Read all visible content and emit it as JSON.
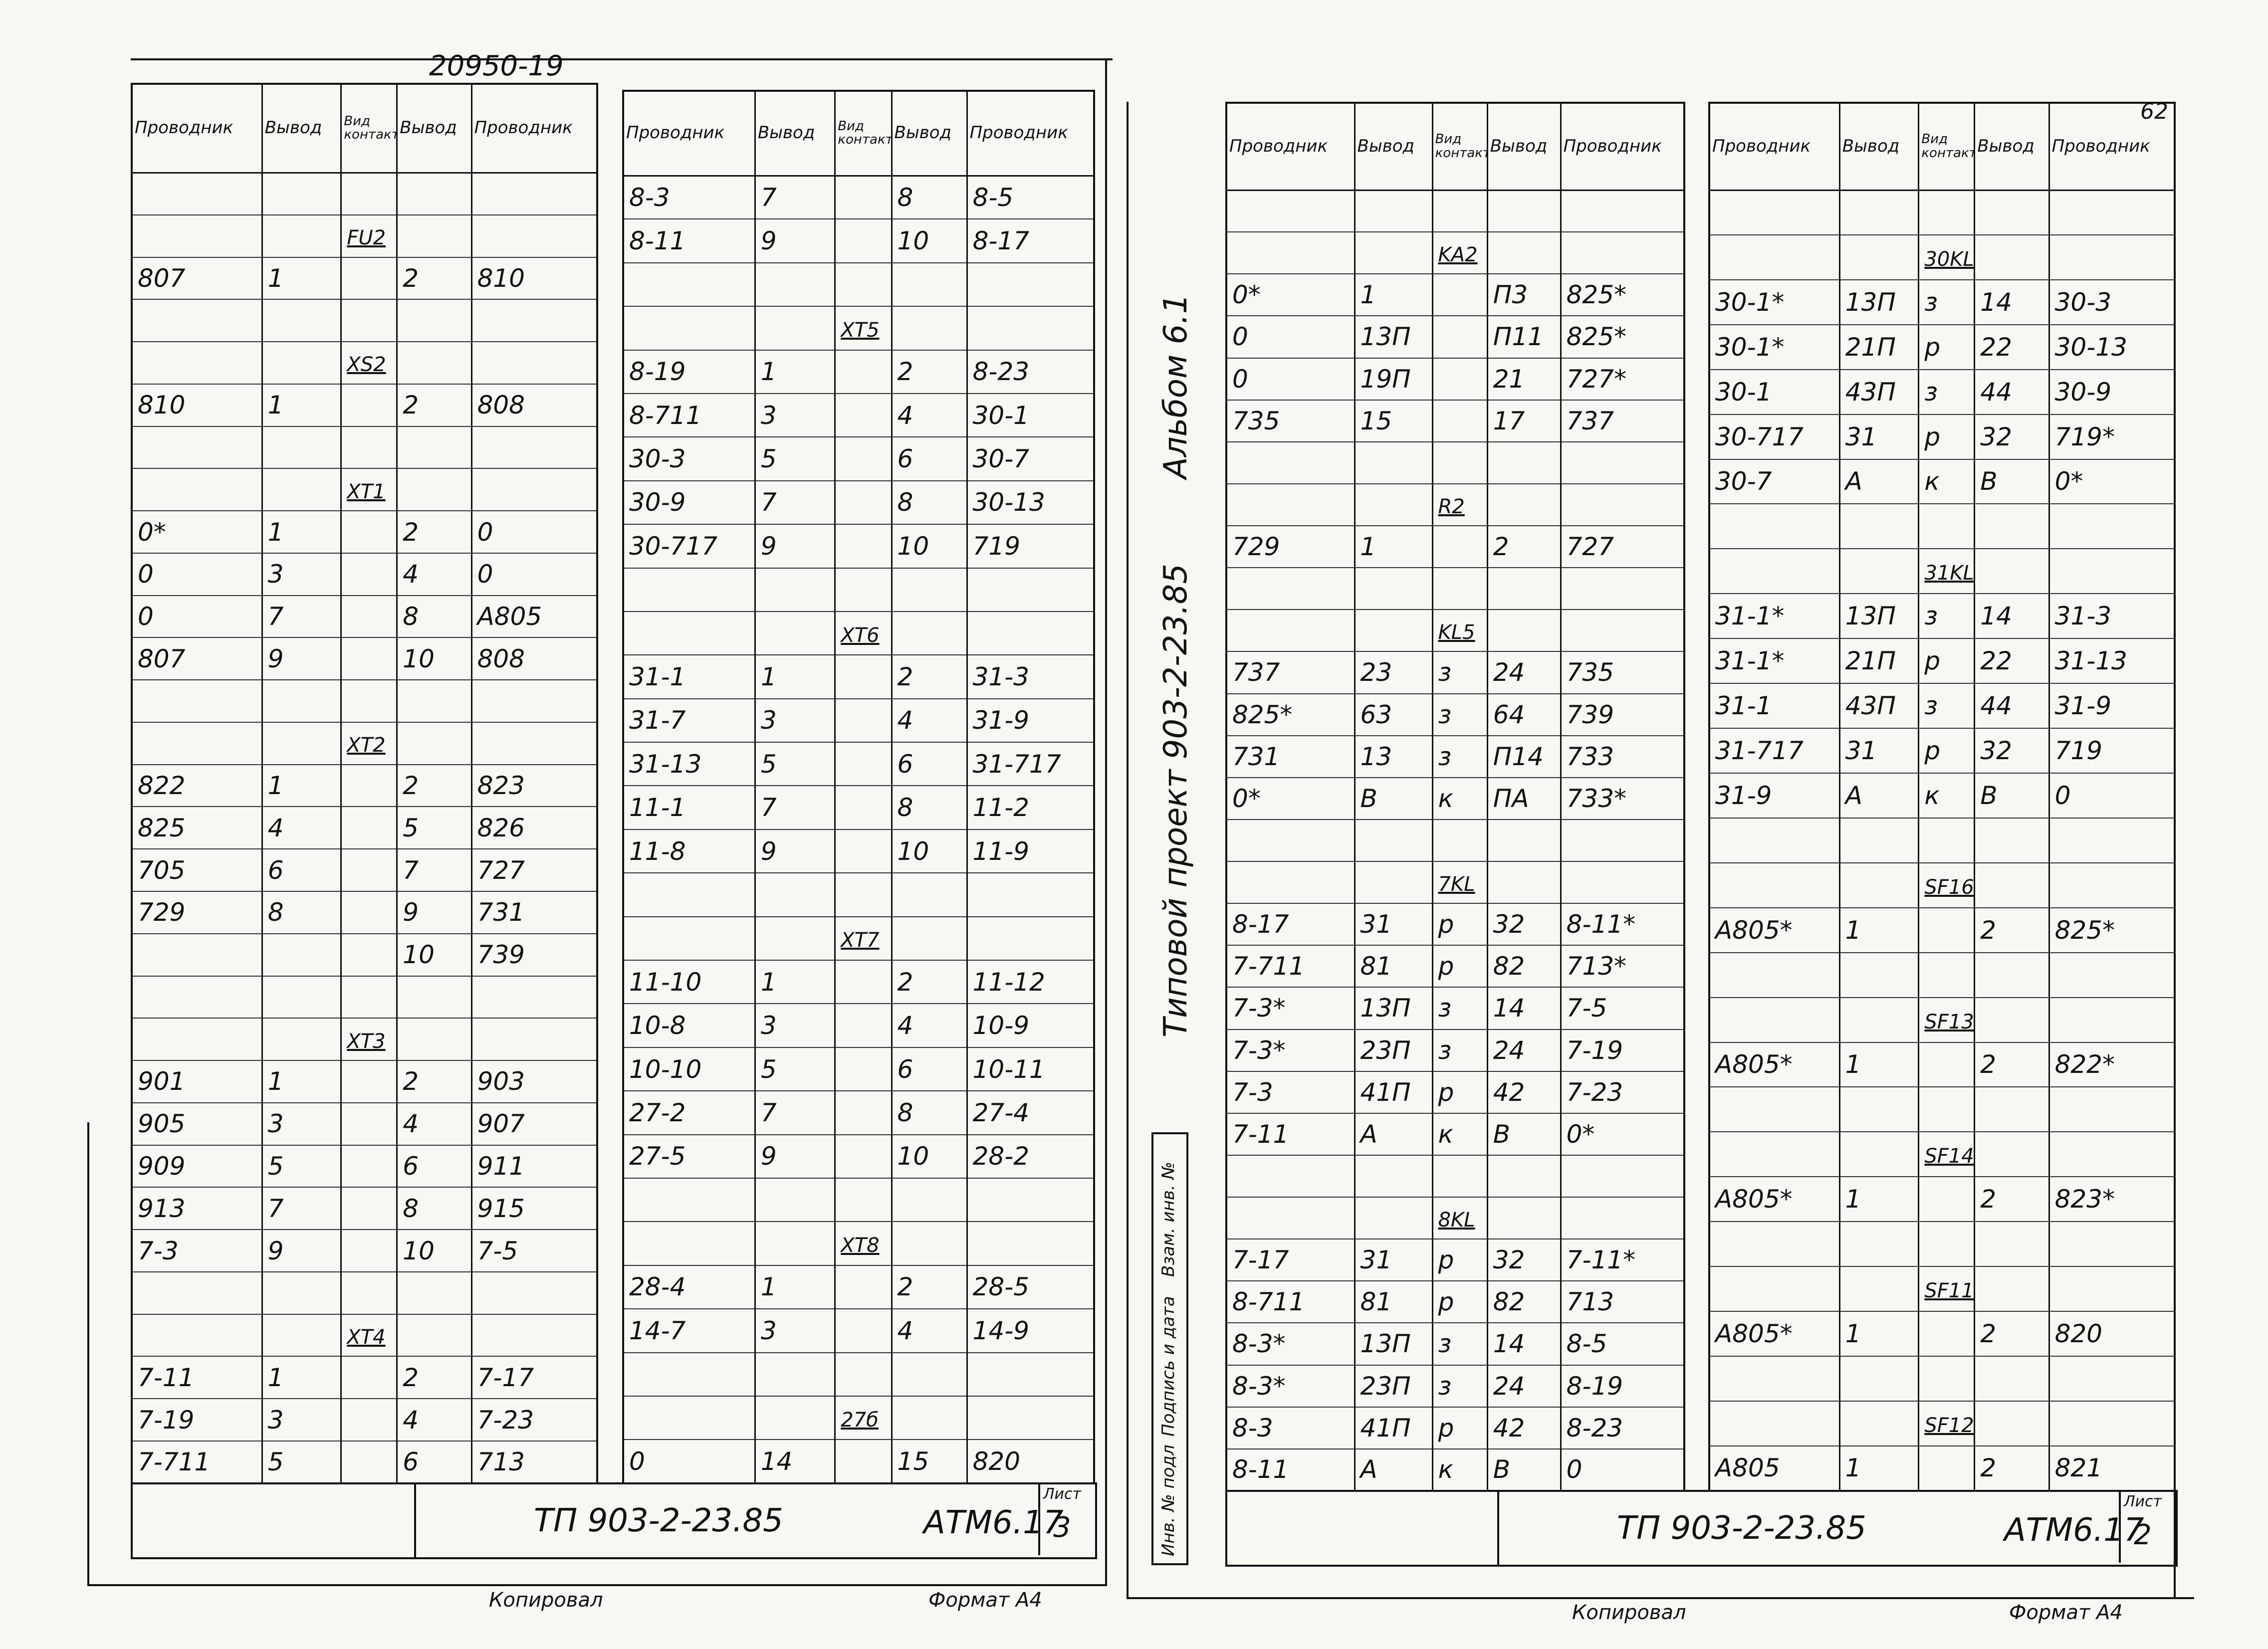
{
  "document_number": "20950-19",
  "page_number": "62",
  "side_labels": [
    "Альбом 6.1",
    "Типовой проект 903-2-23.85"
  ],
  "stamp_fields": [
    "Инв. № подл",
    "Подпись и дата",
    "Взам. инв. №"
  ],
  "sheets": [
    {
      "tables": [
        {
          "header": [
            "Проводник",
            "Вывод",
            "Вид контакта",
            "Вывод",
            "Проводник"
          ],
          "rows": [
            [
              null,
              null,
              null,
              null,
              null
            ],
            [
              null,
              null,
              "FU2",
              null,
              null
            ],
            [
              "807",
              "1",
              null,
              "2",
              "810"
            ],
            [
              null,
              null,
              null,
              null,
              null
            ],
            [
              null,
              null,
              "XS2",
              null,
              null
            ],
            [
              "810",
              "1",
              null,
              "2",
              "808"
            ],
            [
              null,
              null,
              null,
              null,
              null
            ],
            [
              null,
              null,
              "XT1",
              null,
              null
            ],
            [
              "0*",
              "1",
              null,
              "2",
              "0"
            ],
            [
              "0",
              "3",
              null,
              "4",
              "0"
            ],
            [
              "0",
              "7",
              null,
              "8",
              "A805"
            ],
            [
              "807",
              "9",
              null,
              "10",
              "808"
            ],
            [
              null,
              null,
              null,
              null,
              null
            ],
            [
              null,
              null,
              "XT2",
              null,
              null
            ],
            [
              "822",
              "1",
              null,
              "2",
              "823"
            ],
            [
              "825",
              "4",
              null,
              "5",
              "826"
            ],
            [
              "705",
              "6",
              null,
              "7",
              "727"
            ],
            [
              "729",
              "8",
              null,
              "9",
              "731"
            ],
            [
              null,
              null,
              null,
              "10",
              "739"
            ],
            [
              null,
              null,
              null,
              null,
              null
            ],
            [
              null,
              null,
              "XT3",
              null,
              null
            ],
            [
              "901",
              "1",
              null,
              "2",
              "903"
            ],
            [
              "905",
              "3",
              null,
              "4",
              "907"
            ],
            [
              "909",
              "5",
              null,
              "6",
              "911"
            ],
            [
              "913",
              "7",
              null,
              "8",
              "915"
            ],
            [
              "7-3",
              "9",
              null,
              "10",
              "7-5"
            ],
            [
              null,
              null,
              null,
              null,
              null
            ],
            [
              null,
              null,
              "XT4",
              null,
              null
            ],
            [
              "7-11",
              "1",
              null,
              "2",
              "7-17"
            ],
            [
              "7-19",
              "3",
              null,
              "4",
              "7-23"
            ],
            [
              "7-711",
              "5",
              null,
              "6",
              "713"
            ]
          ]
        },
        {
          "header": [
            "Проводник",
            "Вывод",
            "Вид контакта",
            "Вывод",
            "Проводник"
          ],
          "rows": [
            [
              "8-3",
              "7",
              null,
              "8",
              "8-5"
            ],
            [
              "8-11",
              "9",
              null,
              "10",
              "8-17"
            ],
            [
              null,
              null,
              null,
              null,
              null
            ],
            [
              null,
              null,
              "XT5",
              null,
              null
            ],
            [
              "8-19",
              "1",
              null,
              "2",
              "8-23"
            ],
            [
              "8-711",
              "3",
              null,
              "4",
              "30-1"
            ],
            [
              "30-3",
              "5",
              null,
              "6",
              "30-7"
            ],
            [
              "30-9",
              "7",
              null,
              "8",
              "30-13"
            ],
            [
              "30-717",
              "9",
              null,
              "10",
              "719"
            ],
            [
              null,
              null,
              null,
              null,
              null
            ],
            [
              null,
              null,
              "XT6",
              null,
              null
            ],
            [
              "31-1",
              "1",
              null,
              "2",
              "31-3"
            ],
            [
              "31-7",
              "3",
              null,
              "4",
              "31-9"
            ],
            [
              "31-13",
              "5",
              null,
              "6",
              "31-717"
            ],
            [
              "11-1",
              "7",
              null,
              "8",
              "11-2"
            ],
            [
              "11-8",
              "9",
              null,
              "10",
              "11-9"
            ],
            [
              null,
              null,
              null,
              null,
              null
            ],
            [
              null,
              null,
              "XT7",
              null,
              null
            ],
            [
              "11-10",
              "1",
              null,
              "2",
              "11-12"
            ],
            [
              "10-8",
              "3",
              null,
              "4",
              "10-9"
            ],
            [
              "10-10",
              "5",
              null,
              "6",
              "10-11"
            ],
            [
              "27-2",
              "7",
              null,
              "8",
              "27-4"
            ],
            [
              "27-5",
              "9",
              null,
              "10",
              "28-2"
            ],
            [
              null,
              null,
              null,
              null,
              null
            ],
            [
              null,
              null,
              "XT8",
              null,
              null
            ],
            [
              "28-4",
              "1",
              null,
              "2",
              "28-5"
            ],
            [
              "14-7",
              "3",
              null,
              "4",
              "14-9"
            ],
            [
              null,
              null,
              null,
              null,
              null
            ],
            [
              null,
              null,
              "27б",
              null,
              null
            ],
            [
              "0",
              "14",
              null,
              "15",
              "820"
            ]
          ]
        }
      ],
      "title_block": {
        "project": "ТП 903-2-23.85",
        "code": "АТМ6.17",
        "sheet_label": "Лист",
        "sheet": "3"
      },
      "footer": {
        "copied": "Копировал",
        "format": "Формат А4"
      }
    },
    {
      "tables": [
        {
          "header": [
            "Проводник",
            "Вывод",
            "Вид контакта",
            "Вывод",
            "Проводник"
          ],
          "rows": [
            [
              null,
              null,
              null,
              null,
              null
            ],
            [
              null,
              null,
              "KA2",
              null,
              null
            ],
            [
              "0*",
              "1",
              null,
              "П3",
              "825*"
            ],
            [
              "0",
              "13П",
              null,
              "П11",
              "825*"
            ],
            [
              "0",
              "19П",
              null,
              "21",
              "727*"
            ],
            [
              "735",
              "15",
              null,
              "17",
              "737"
            ],
            [
              null,
              null,
              null,
              null,
              null
            ],
            [
              null,
              null,
              "R2",
              null,
              null
            ],
            [
              "729",
              "1",
              null,
              "2",
              "727"
            ],
            [
              null,
              null,
              null,
              null,
              null
            ],
            [
              null,
              null,
              "KL5",
              null,
              null
            ],
            [
              "737",
              "23",
              "з",
              "24",
              "735"
            ],
            [
              "825*",
              "63",
              "з",
              "64",
              "739"
            ],
            [
              "731",
              "13",
              "з",
              "П14",
              "733"
            ],
            [
              "0*",
              "В",
              "к",
              "ПА",
              "733*"
            ],
            [
              null,
              null,
              null,
              null,
              null
            ],
            [
              null,
              null,
              "7KL",
              null,
              null
            ],
            [
              "8-17",
              "31",
              "р",
              "32",
              "8-11*"
            ],
            [
              "7-711",
              "81",
              "р",
              "82",
              "713*"
            ],
            [
              "7-3*",
              "13П",
              "з",
              "14",
              "7-5"
            ],
            [
              "7-3*",
              "23П",
              "з",
              "24",
              "7-19"
            ],
            [
              "7-3",
              "41П",
              "р",
              "42",
              "7-23"
            ],
            [
              "7-11",
              "А",
              "к",
              "В",
              "0*"
            ],
            [
              null,
              null,
              null,
              null,
              null
            ],
            [
              null,
              null,
              "8KL",
              null,
              null
            ],
            [
              "7-17",
              "31",
              "р",
              "32",
              "7-11*"
            ],
            [
              "8-711",
              "81",
              "р",
              "82",
              "713"
            ],
            [
              "8-3*",
              "13П",
              "з",
              "14",
              "8-5"
            ],
            [
              "8-3*",
              "23П",
              "з",
              "24",
              "8-19"
            ],
            [
              "8-3",
              "41П",
              "р",
              "42",
              "8-23"
            ],
            [
              "8-11",
              "А",
              "к",
              "В",
              "0"
            ]
          ]
        },
        {
          "header": [
            "Проводник",
            "Вывод",
            "Вид контакта",
            "Вывод",
            "Проводник"
          ],
          "rows": [
            [
              null,
              null,
              null,
              null,
              null
            ],
            [
              null,
              null,
              "30KL",
              null,
              null
            ],
            [
              "30-1*",
              "13П",
              "з",
              "14",
              "30-3"
            ],
            [
              "30-1*",
              "21П",
              "р",
              "22",
              "30-13"
            ],
            [
              "30-1",
              "43П",
              "з",
              "44",
              "30-9"
            ],
            [
              "30-717",
              "31",
              "р",
              "32",
              "719*"
            ],
            [
              "30-7",
              "А",
              "к",
              "В",
              "0*"
            ],
            [
              null,
              null,
              null,
              null,
              null
            ],
            [
              null,
              null,
              "31KL",
              null,
              null
            ],
            [
              "31-1*",
              "13П",
              "з",
              "14",
              "31-3"
            ],
            [
              "31-1*",
              "21П",
              "р",
              "22",
              "31-13"
            ],
            [
              "31-1",
              "43П",
              "з",
              "44",
              "31-9"
            ],
            [
              "31-717",
              "31",
              "р",
              "32",
              "719"
            ],
            [
              "31-9",
              "А",
              "к",
              "В",
              "0"
            ],
            [
              null,
              null,
              null,
              null,
              null
            ],
            [
              null,
              null,
              "SF16",
              null,
              null
            ],
            [
              "А805*",
              "1",
              null,
              "2",
              "825*"
            ],
            [
              null,
              null,
              null,
              null,
              null
            ],
            [
              null,
              null,
              "SF13",
              null,
              null
            ],
            [
              "А805*",
              "1",
              null,
              "2",
              "822*"
            ],
            [
              null,
              null,
              null,
              null,
              null
            ],
            [
              null,
              null,
              "SF14",
              null,
              null
            ],
            [
              "А805*",
              "1",
              null,
              "2",
              "823*"
            ],
            [
              null,
              null,
              null,
              null,
              null
            ],
            [
              null,
              null,
              "SF11",
              null,
              null
            ],
            [
              "А805*",
              "1",
              null,
              "2",
              "820"
            ],
            [
              null,
              null,
              null,
              null,
              null
            ],
            [
              null,
              null,
              "SF12",
              null,
              null
            ],
            [
              "А805",
              "1",
              null,
              "2",
              "821"
            ]
          ]
        }
      ],
      "title_block": {
        "project": "ТП 903-2-23.85",
        "code": "АТМ6.17",
        "sheet_label": "Лист",
        "sheet": "2"
      },
      "footer": {
        "copied": "Копировал",
        "format": "Формат А4"
      }
    }
  ]
}
